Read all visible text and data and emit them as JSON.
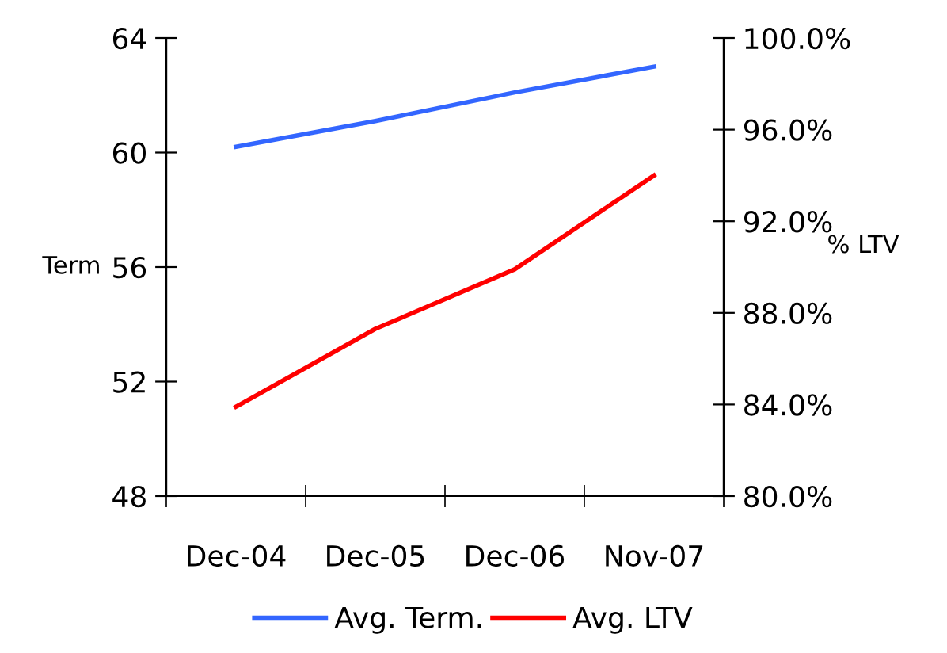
{
  "chart_data": {
    "type": "line",
    "categories": [
      "Dec-04",
      "Dec-05",
      "Dec-06",
      "Nov-07"
    ],
    "series": [
      {
        "name": "Avg. Term.",
        "color": "#3366ff",
        "values": [
          60.2,
          61.1,
          62.1,
          63.0
        ]
      },
      {
        "name": "Avg. LTV",
        "color": "#ff0000",
        "values": [
          83.9,
          87.3,
          89.9,
          94.0
        ],
        "axis": "y2"
      }
    ],
    "ylabel": "Term",
    "y2label": "% LTV",
    "ylim": [
      48,
      64
    ],
    "yticks": [
      48,
      52,
      56,
      60,
      64
    ],
    "y2lim": [
      80,
      100
    ],
    "y2ticks": [
      {
        "value": 80,
        "label": "80.0%"
      },
      {
        "value": 84,
        "label": "84.0%"
      },
      {
        "value": 88,
        "label": "88.0%"
      },
      {
        "value": 92,
        "label": "92.0%"
      },
      {
        "value": 96,
        "label": "96.0%"
      },
      {
        "value": 100,
        "label": "100.0%"
      }
    ],
    "grid": false,
    "legend": "bottom",
    "marker": "none",
    "line_style": "solid"
  }
}
